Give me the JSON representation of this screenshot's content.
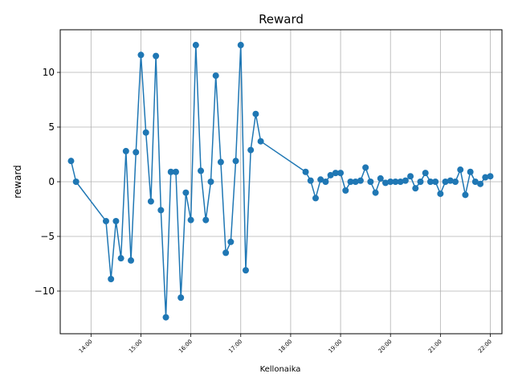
{
  "chart_data": {
    "type": "line",
    "title": "Reward",
    "xlabel": "Kellonaika",
    "ylabel": "reward",
    "xlim": [
      "13:23",
      "22:14"
    ],
    "ylim": [
      -13.9,
      13.9
    ],
    "grid": true,
    "line_color": "#1f77b4",
    "x_ticks": [
      "14:00",
      "15:00",
      "16:00",
      "17:00",
      "18:00",
      "19:00",
      "20:00",
      "21:00",
      "22:00"
    ],
    "y_ticks": [
      -10,
      -5,
      0,
      5,
      10
    ],
    "y_tick_labels": [
      "−10",
      "−5",
      "0",
      "5",
      "10"
    ],
    "series": [
      {
        "x": [
          "13:36",
          "13:42",
          "14:18",
          "14:24",
          "14:30",
          "14:36",
          "14:42",
          "14:48",
          "14:54",
          "15:00",
          "15:06",
          "15:12",
          "15:18",
          "15:24",
          "15:30",
          "15:36",
          "15:42",
          "15:48",
          "15:54",
          "16:00",
          "16:06",
          "16:12",
          "16:18",
          "16:24",
          "16:30",
          "16:36",
          "16:42",
          "16:48",
          "16:54",
          "17:00",
          "17:06",
          "17:12",
          "17:18",
          "17:24",
          "18:18",
          "18:24",
          "18:30",
          "18:36",
          "18:42",
          "18:48",
          "18:54",
          "19:00",
          "19:06",
          "19:12",
          "19:18",
          "19:24",
          "19:30",
          "19:36",
          "19:42",
          "19:48",
          "19:54",
          "20:00",
          "20:06",
          "20:12",
          "20:18",
          "20:24",
          "20:30",
          "20:36",
          "20:42",
          "20:48",
          "20:54",
          "21:00",
          "21:06",
          "21:12",
          "21:18",
          "21:24",
          "21:30",
          "21:36",
          "21:42",
          "21:48",
          "21:54",
          "22:00"
        ],
        "y": [
          1.9,
          0.0,
          -3.6,
          -8.9,
          -3.6,
          -7.0,
          2.8,
          -7.2,
          2.7,
          11.6,
          4.5,
          -1.8,
          11.5,
          -2.6,
          -12.4,
          0.9,
          0.9,
          -10.6,
          -1.0,
          -3.5,
          12.5,
          1.0,
          -3.5,
          0.0,
          9.7,
          1.8,
          -6.5,
          -5.5,
          1.9,
          12.5,
          -8.1,
          2.9,
          6.2,
          3.7,
          0.9,
          0.1,
          -1.5,
          0.2,
          0.0,
          0.6,
          0.8,
          0.8,
          -0.8,
          0.0,
          0.0,
          0.1,
          1.3,
          0.0,
          -1.0,
          0.3,
          -0.1,
          0.0,
          0.0,
          0.0,
          0.1,
          0.5,
          -0.6,
          0.0,
          0.8,
          0.0,
          0.0,
          -1.1,
          0.0,
          0.1,
          0.0,
          1.1,
          -1.2,
          0.9,
          0.0,
          -0.2,
          0.4,
          0.5
        ]
      }
    ]
  }
}
